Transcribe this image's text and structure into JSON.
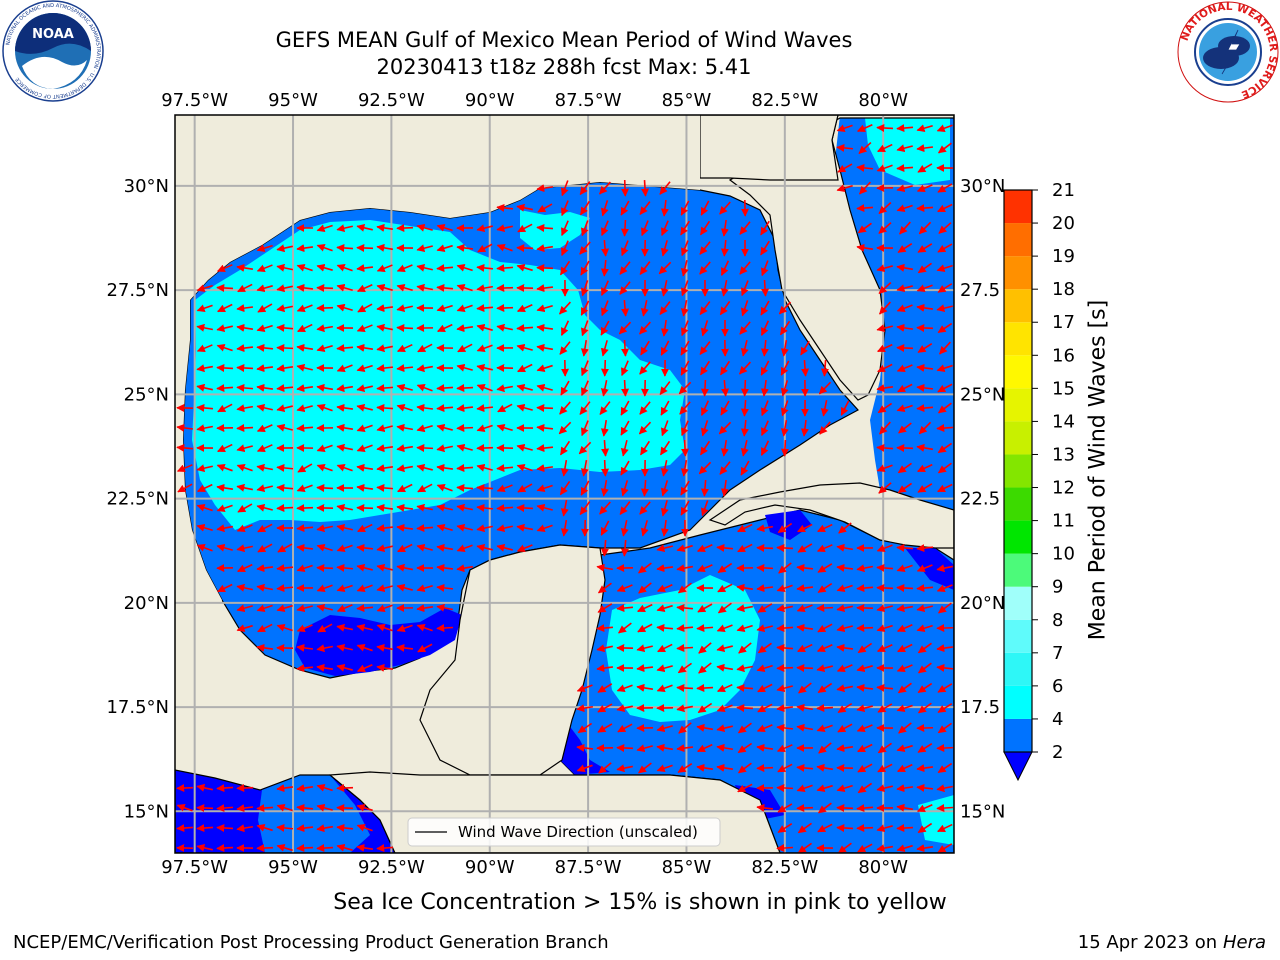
{
  "header": {
    "title_line1": "GEFS MEAN Gulf of Mexico Mean Period of Wind Waves",
    "title_line2": "20230413 t18z 288h fcst   Max: 5.41"
  },
  "map": {
    "lon_labels": [
      "97.5°W",
      "95°W",
      "92.5°W",
      "90°W",
      "87.5°W",
      "85°W",
      "82.5°W",
      "80°W"
    ],
    "lat_labels_left": [
      "30°N",
      "27.5°N",
      "25°N",
      "22.5°N",
      "20°N",
      "17.5°N",
      "15°N"
    ],
    "lat_labels_right": [
      "30°N",
      "27.5",
      "25°N",
      "22.5",
      "20°N",
      "17.5",
      "15°N"
    ],
    "lon_range": [
      -98,
      -78.2
    ],
    "lat_range": [
      14,
      31.7
    ],
    "legend_text": "Wind Wave Direction (unscaled)",
    "land_color": "#efecdc",
    "arrow_color": "#ff0000"
  },
  "colorbar": {
    "title": "Mean Period of Wind Waves [s]",
    "ticks": [
      "2",
      "4",
      "6",
      "7",
      "8",
      "9",
      "10",
      "11",
      "12",
      "13",
      "14",
      "15",
      "16",
      "17",
      "18",
      "19",
      "20",
      "21"
    ],
    "colors": [
      "#0073ff",
      "#00ffff",
      "#2ef7f7",
      "#5ffbfb",
      "#a0fffa",
      "#4cfa7a",
      "#00e600",
      "#3cda00",
      "#83e600",
      "#c8f000",
      "#e6f400",
      "#fff800",
      "#ffe400",
      "#ffc000",
      "#ff9000",
      "#ff6e00",
      "#ff3200",
      "#ff0000"
    ],
    "under_color": "#0000ff"
  },
  "footer": {
    "ice_note": "Sea Ice Concentration > 15% is shown in pink to yellow",
    "credit": "NCEP/EMC/Verification Post Processing Product Generation Branch",
    "date": "15 Apr 2023 on",
    "machine": "Hera"
  },
  "logos": {
    "noaa_text": "NOAA",
    "noaa_ring_text": "NATIONAL OCEANIC AND ATMOSPHERIC ADMINISTRATION · U.S. DEPARTMENT OF COMMERCE",
    "nws_ring_text": "NATIONAL WEATHER SERVICE"
  }
}
